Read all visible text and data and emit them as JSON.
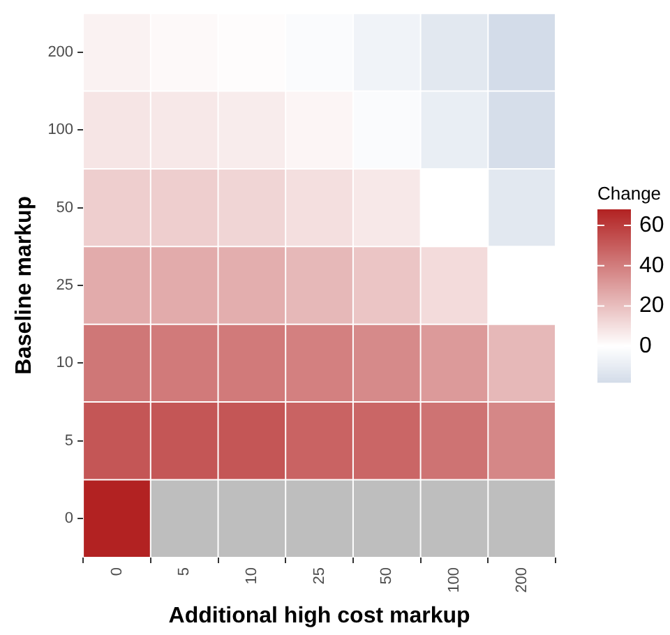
{
  "chart_data": {
    "type": "heatmap",
    "xlabel": "Additional high cost markup",
    "ylabel": "Baseline markup",
    "clabel": "Change",
    "categories": [
      "0",
      "5",
      "10",
      "25",
      "50",
      "100",
      "200"
    ],
    "y_categories": [
      "200",
      "100",
      "50",
      "25",
      "10",
      "5",
      "0"
    ],
    "cells": [
      [
        4,
        2,
        1,
        -2,
        -6,
        -12,
        -18
      ],
      [
        8,
        7,
        6,
        3,
        -2,
        -9,
        -17
      ],
      [
        15,
        15,
        13,
        10,
        7,
        0,
        -12
      ],
      [
        26,
        26,
        25,
        22,
        18,
        11,
        0
      ],
      [
        42,
        41,
        41,
        39,
        36,
        31,
        22
      ],
      [
        52,
        52,
        52,
        48,
        47,
        43,
        37
      ],
      [
        68,
        null,
        null,
        null,
        null,
        null,
        null
      ]
    ],
    "clim": [
      -18,
      68
    ],
    "cticks": [
      0,
      20,
      40,
      60
    ]
  }
}
